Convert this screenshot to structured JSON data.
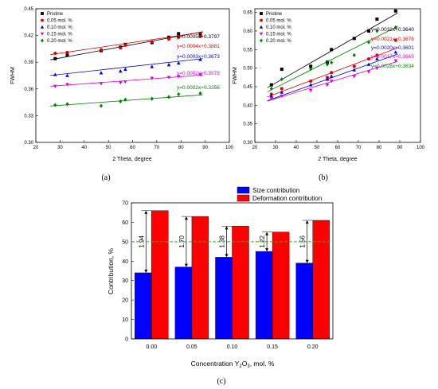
{
  "chart_data": [
    {
      "panel": "a",
      "type": "scatter",
      "caption": "(a)",
      "xlabel": "2 Theta, degree",
      "ylabel": "FWHM",
      "xlim": [
        20,
        100
      ],
      "ylim": [
        0.3,
        0.45
      ],
      "xticks": [
        "20",
        "30",
        "40",
        "50",
        "60",
        "70",
        "80",
        "90",
        "100"
      ],
      "yticks": [
        "0.30",
        "0.33",
        "0.36",
        "0.39",
        "0.42",
        "0.45"
      ],
      "legend_position": "top-left",
      "series": [
        {
          "name": "Pristine",
          "color": "#000000",
          "marker": "square",
          "fit": "y=0.0005x+0.3797",
          "slope": 0.0005,
          "intercept": 0.3797,
          "x": [
            28,
            33,
            47,
            55,
            57,
            68,
            75,
            79,
            88
          ],
          "y": [
            0.394,
            0.398,
            0.403,
            0.407,
            0.41,
            0.412,
            0.418,
            0.422,
            0.421
          ]
        },
        {
          "name": "0.05 mol. %",
          "color": "#e00000",
          "marker": "circle",
          "fit": "y=0.0004x+0.3881",
          "slope": 0.0004,
          "intercept": 0.3881,
          "x": [
            28,
            33,
            47,
            55,
            57,
            68,
            75,
            79,
            88
          ],
          "y": [
            0.4,
            0.401,
            0.404,
            0.406,
            0.409,
            0.413,
            0.416,
            0.418,
            0.419
          ]
        },
        {
          "name": "0.10 mol. %",
          "color": "#0000e0",
          "marker": "triangle-up",
          "fit": "y=0.0003x+0.3673",
          "slope": 0.0003,
          "intercept": 0.3673,
          "x": [
            28,
            33,
            47,
            55,
            57,
            68,
            75,
            79,
            88
          ],
          "y": [
            0.376,
            0.375,
            0.378,
            0.38,
            0.382,
            0.385,
            0.387,
            0.389,
            0.393
          ]
        },
        {
          "name": "0.15 mol. %",
          "color": "#e000e0",
          "marker": "triangle-down",
          "fit": "y=0.0002x+0.3578",
          "slope": 0.0002,
          "intercept": 0.3578,
          "x": [
            28,
            33,
            47,
            55,
            57,
            68,
            75,
            79,
            88
          ],
          "y": [
            0.363,
            0.365,
            0.366,
            0.367,
            0.368,
            0.372,
            0.373,
            0.374,
            0.376
          ]
        },
        {
          "name": "0.20 mol. %",
          "color": "#008000",
          "marker": "diamond",
          "fit": "y=0.0002x+0.3356",
          "slope": 0.0002,
          "intercept": 0.3356,
          "x": [
            28,
            33,
            47,
            55,
            57,
            68,
            75,
            79,
            88
          ],
          "y": [
            0.342,
            0.343,
            0.341,
            0.346,
            0.348,
            0.349,
            0.351,
            0.354,
            0.355
          ]
        }
      ]
    },
    {
      "panel": "b",
      "type": "scatter",
      "caption": "(b)",
      "xlabel": "2 Theta, degree",
      "ylabel": "FWHM",
      "xlim": [
        20,
        100
      ],
      "ylim": [
        0.3,
        0.66
      ],
      "xticks": [
        "20",
        "30",
        "40",
        "50",
        "60",
        "70",
        "80",
        "90",
        "100"
      ],
      "yticks": [
        "0.30",
        "0.35",
        "0.40",
        "0.45",
        "0.50",
        "0.55",
        "0.60",
        "0.65"
      ],
      "legend_position": "top-left",
      "series": [
        {
          "name": "Pristine",
          "color": "#000000",
          "marker": "square",
          "fit": "y=0.0032x+0.3640",
          "slope": 0.0032,
          "intercept": 0.364,
          "x": [
            28,
            33,
            47,
            55,
            57,
            68,
            75,
            79,
            88
          ],
          "y": [
            0.455,
            0.497,
            0.505,
            0.516,
            0.55,
            0.58,
            0.6,
            0.632,
            0.654
          ]
        },
        {
          "name": "0.05 mol. %",
          "color": "#e00000",
          "marker": "circle",
          "fit": "y=0.0021x+0.3678",
          "slope": 0.0021,
          "intercept": 0.3678,
          "x": [
            28,
            33,
            47,
            55,
            57,
            68,
            75,
            79,
            88
          ],
          "y": [
            0.43,
            0.445,
            0.465,
            0.475,
            0.488,
            0.505,
            0.525,
            0.535,
            0.575
          ]
        },
        {
          "name": "0.10 mol. %",
          "color": "#0000e0",
          "marker": "triangle-up",
          "fit": "y=0.0020x+0.3601",
          "slope": 0.002,
          "intercept": 0.3601,
          "x": [
            28,
            33,
            47,
            55,
            57,
            68,
            75,
            79,
            88
          ],
          "y": [
            0.425,
            0.435,
            0.455,
            0.47,
            0.478,
            0.495,
            0.51,
            0.525,
            0.543
          ]
        },
        {
          "name": "0.15 mol. %",
          "color": "#e000e0",
          "marker": "triangle-down",
          "fit": "y=0.0017x+0.3669",
          "slope": 0.0017,
          "intercept": 0.3669,
          "x": [
            28,
            33,
            47,
            55,
            57,
            68,
            75,
            79,
            88
          ],
          "y": [
            0.418,
            0.425,
            0.44,
            0.455,
            0.465,
            0.478,
            0.49,
            0.5,
            0.52
          ]
        },
        {
          "name": "0.20 mol. %",
          "color": "#008000",
          "marker": "diamond",
          "fit": "y=0.0028x+0.3634",
          "slope": 0.0028,
          "intercept": 0.3634,
          "x": [
            28,
            33,
            47,
            55,
            57,
            68,
            75,
            79,
            88
          ],
          "y": [
            0.445,
            0.47,
            0.498,
            0.51,
            0.515,
            0.535,
            0.57,
            0.6,
            0.61
          ]
        }
      ]
    },
    {
      "panel": "c",
      "type": "bar",
      "caption": "(c)",
      "xlabel_parts": [
        "Concentration Y",
        "2",
        "O",
        "3",
        ", mol. %"
      ],
      "ylabel": "Contribution, %",
      "ylim": [
        0,
        70
      ],
      "yticks": [
        "0",
        "10",
        "20",
        "30",
        "40",
        "50",
        "60",
        "70"
      ],
      "categories": [
        "0.00",
        "0.05",
        "0.10",
        "0.15",
        "0.20"
      ],
      "legend_position": "top",
      "reference_line": 50,
      "reference_color": "#00cc00",
      "series": [
        {
          "name": "Size contribution",
          "color": "#0000ff",
          "values": [
            34,
            37,
            42,
            45,
            39
          ]
        },
        {
          "name": "Deformation contribution",
          "color": "#ff0000",
          "values": [
            66,
            63,
            58,
            55,
            61
          ]
        }
      ],
      "ratio_labels": [
        "1.94",
        "1.70",
        "1.38",
        "1.22",
        "1.56"
      ]
    }
  ]
}
